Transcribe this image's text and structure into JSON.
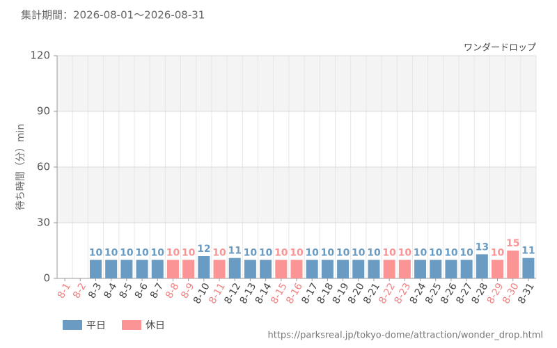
{
  "chart_data": {
    "type": "bar",
    "title": "集計期間：2026-08-01～2026-08-31",
    "subtitle": "ワンダードロップ",
    "y_label": "待ち時間（分）min",
    "source": "https://parksreal.jp/tokyo-dome/attraction/wonder_drop.html",
    "categories": [
      "8-1",
      "8-2",
      "8-3",
      "8-4",
      "8-5",
      "8-6",
      "8-7",
      "8-8",
      "8-9",
      "8-10",
      "8-11",
      "8-12",
      "8-13",
      "8-14",
      "8-15",
      "8-16",
      "8-17",
      "8-18",
      "8-19",
      "8-20",
      "8-21",
      "8-22",
      "8-23",
      "8-24",
      "8-25",
      "8-26",
      "8-27",
      "8-28",
      "8-29",
      "8-30",
      "8-31"
    ],
    "label_colors": [
      "#f08080",
      "#f08080",
      "#444",
      "#444",
      "#444",
      "#444",
      "#444",
      "#f08080",
      "#f08080",
      "#444",
      "#f08080",
      "#444",
      "#444",
      "#444",
      "#f08080",
      "#f08080",
      "#444",
      "#444",
      "#444",
      "#444",
      "#444",
      "#f08080",
      "#f08080",
      "#444",
      "#444",
      "#444",
      "#444",
      "#444",
      "#f08080",
      "#f08080",
      "#444"
    ],
    "series": [
      {
        "name": "平日",
        "color": "#6a9bc3",
        "values": [
          null,
          null,
          10,
          10,
          10,
          10,
          10,
          null,
          null,
          12,
          null,
          11,
          10,
          10,
          null,
          null,
          10,
          10,
          10,
          10,
          10,
          null,
          null,
          10,
          10,
          10,
          10,
          13,
          null,
          null,
          11
        ]
      },
      {
        "name": "休日",
        "color": "#fb9494",
        "values": [
          null,
          null,
          null,
          null,
          null,
          null,
          null,
          10,
          10,
          null,
          10,
          null,
          null,
          null,
          10,
          10,
          null,
          null,
          null,
          null,
          null,
          10,
          10,
          null,
          null,
          null,
          null,
          null,
          10,
          15,
          null
        ]
      }
    ],
    "ylim": [
      0,
      120
    ],
    "yticks": [
      0,
      30,
      60,
      90,
      120
    ],
    "grid": true
  }
}
